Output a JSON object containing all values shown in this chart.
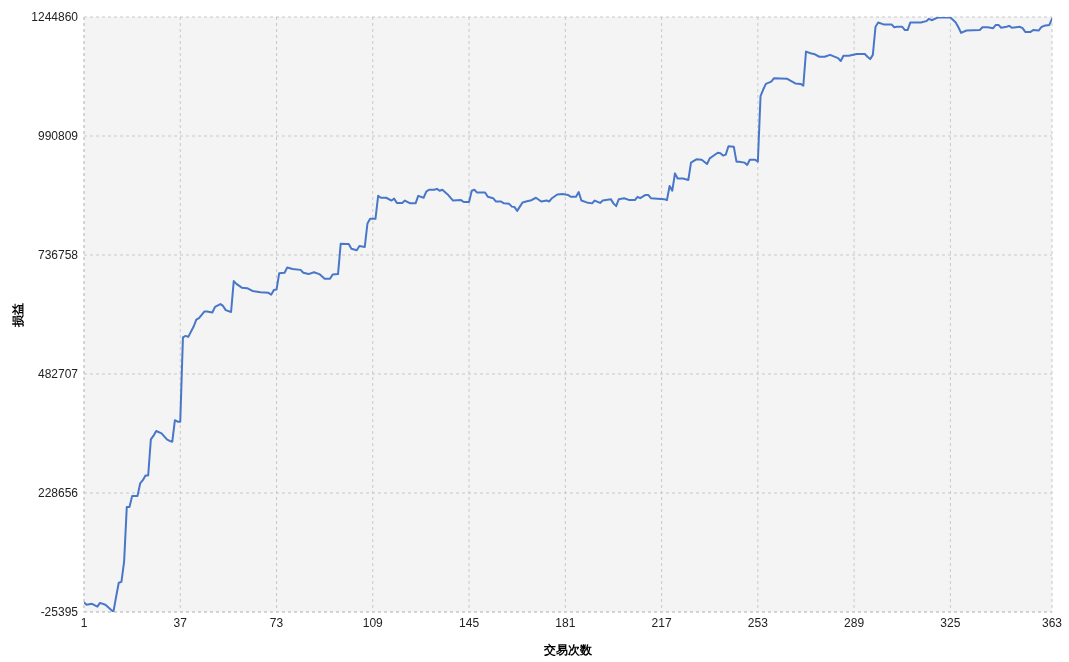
{
  "chart_data": {
    "type": "line",
    "xlabel": "交易次数",
    "ylabel": "损益",
    "x": [
      1,
      2,
      4,
      6,
      7,
      9,
      11,
      12,
      13,
      14,
      15,
      16,
      17,
      18,
      19,
      21,
      22,
      23,
      24,
      25,
      26,
      27,
      28,
      30,
      32,
      33,
      34,
      35,
      36,
      37,
      38,
      39,
      40,
      42,
      43,
      44,
      46,
      47,
      49,
      50,
      52,
      53,
      54,
      56,
      57,
      58,
      60,
      62,
      64,
      67,
      70,
      71,
      72,
      73,
      74,
      76,
      77,
      79,
      82,
      83,
      85,
      87,
      89,
      91,
      93,
      94,
      96,
      97,
      99,
      100,
      101,
      103,
      104,
      106,
      107,
      108,
      110,
      111,
      112,
      114,
      116,
      117,
      118,
      120,
      121,
      123,
      125,
      126,
      128,
      129,
      130,
      132,
      133,
      134,
      135,
      137,
      139,
      142,
      143,
      145,
      146,
      147,
      148,
      151,
      152,
      154,
      155,
      157,
      158,
      160,
      161,
      162,
      163,
      164,
      165,
      167,
      168,
      170,
      172,
      174,
      175,
      176,
      178,
      180,
      182,
      183,
      185,
      186,
      187,
      189,
      191,
      192,
      194,
      195,
      198,
      199,
      200,
      201,
      203,
      205,
      207,
      208,
      209,
      211,
      212,
      213,
      218,
      219,
      220,
      221,
      222,
      223,
      225,
      227,
      228,
      230,
      232,
      234,
      235,
      236,
      238,
      239,
      240,
      241,
      242,
      244,
      245,
      246,
      248,
      249,
      250,
      252,
      253,
      254,
      255,
      256,
      258,
      259,
      264,
      267,
      269,
      270,
      271,
      273,
      274,
      276,
      278,
      280,
      283,
      284,
      285,
      287,
      290,
      293,
      294,
      295,
      296,
      297,
      298,
      300,
      303,
      304,
      305,
      307,
      308,
      309,
      310,
      314,
      316,
      317,
      318,
      320,
      321,
      325,
      327,
      328,
      329,
      331,
      336,
      337,
      339,
      341,
      342,
      343,
      344,
      346,
      347,
      348,
      351,
      352,
      353,
      355,
      356,
      358,
      359,
      360,
      362,
      363
    ],
    "series": [
      {
        "color": "#4877c9",
        "values": [
          -5000,
          -10000,
          -8000,
          -14000,
          -6000,
          -10000,
          -20000,
          -25000,
          7000,
          37000,
          39000,
          82000,
          199000,
          199000,
          222000,
          222000,
          249000,
          256000,
          266000,
          266000,
          343000,
          351000,
          361000,
          356000,
          343000,
          340000,
          338000,
          384000,
          381000,
          381000,
          561000,
          564000,
          562000,
          584000,
          599000,
          602000,
          616000,
          616000,
          614000,
          626000,
          632000,
          628000,
          619000,
          615000,
          681000,
          675000,
          667000,
          666000,
          660000,
          657000,
          656000,
          652000,
          662000,
          663000,
          698000,
          699000,
          710000,
          707000,
          705000,
          699000,
          696000,
          700000,
          696000,
          686000,
          686000,
          695000,
          696000,
          761000,
          760000,
          760000,
          750000,
          747000,
          756000,
          754000,
          804000,
          814000,
          814000,
          863000,
          859000,
          859000,
          853000,
          857000,
          848000,
          848000,
          853000,
          847000,
          847000,
          863000,
          859000,
          872000,
          876000,
          876000,
          878000,
          874000,
          876000,
          866000,
          853000,
          854000,
          850000,
          850000,
          874000,
          876000,
          870000,
          870000,
          861000,
          858000,
          851000,
          851000,
          847000,
          846000,
          840000,
          839000,
          831000,
          840000,
          849000,
          852000,
          853000,
          859000,
          851000,
          853000,
          851000,
          858000,
          866000,
          867000,
          865000,
          861000,
          861000,
          871000,
          853000,
          849000,
          847000,
          853000,
          848000,
          853000,
          856000,
          847000,
          841000,
          856000,
          858000,
          854000,
          854000,
          861000,
          858000,
          865000,
          865000,
          858000,
          856000,
          854000,
          884000,
          874000,
          911000,
          900000,
          900000,
          897000,
          934000,
          941000,
          940000,
          931000,
          943000,
          947000,
          955000,
          954000,
          949000,
          951000,
          969000,
          968000,
          936000,
          936000,
          934000,
          929000,
          940000,
          940000,
          936000,
          1076000,
          1090000,
          1102000,
          1107000,
          1114000,
          1113000,
          1103000,
          1102000,
          1098000,
          1171000,
          1167000,
          1166000,
          1160000,
          1160000,
          1164000,
          1157000,
          1151000,
          1162000,
          1162000,
          1166000,
          1166000,
          1160000,
          1155000,
          1164000,
          1224000,
          1233000,
          1229000,
          1229000,
          1223000,
          1224000,
          1224000,
          1217000,
          1217000,
          1233000,
          1233000,
          1236000,
          1241000,
          1238000,
          1243000,
          1244000,
          1244000,
          1233000,
          1223000,
          1211000,
          1216000,
          1217000,
          1223000,
          1223000,
          1221000,
          1228000,
          1228000,
          1222000,
          1224000,
          1226000,
          1222000,
          1224000,
          1221000,
          1213000,
          1213000,
          1217000,
          1216000,
          1223000,
          1226000,
          1228000,
          1241000
        ]
      }
    ],
    "xlim": [
      1,
      363
    ],
    "xticks": [
      1,
      37,
      73,
      109,
      145,
      181,
      217,
      253,
      289,
      325,
      363
    ],
    "ylim": [
      -25395,
      1244860
    ],
    "yticks": [
      -25395,
      228656,
      482707,
      736758,
      990809,
      1244860
    ],
    "grid": true
  }
}
